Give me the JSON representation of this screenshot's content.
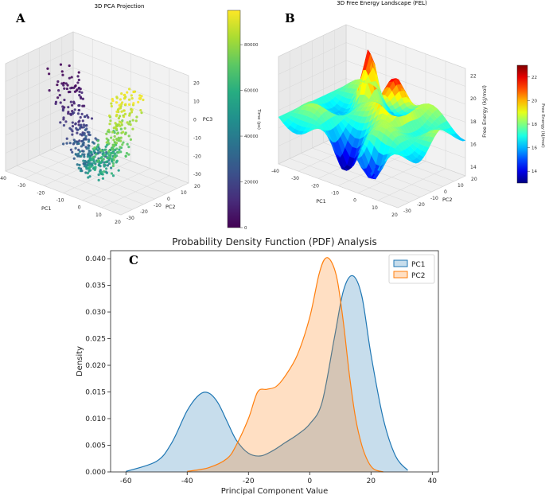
{
  "panels": {
    "a": {
      "letter": "A",
      "title": "3D PCA Projection",
      "xlabel": "PC1",
      "ylabel": "PC2",
      "zlabel": "PC3",
      "x_ticks": [
        "-40",
        "-30",
        "-20",
        "-10",
        "0",
        "10",
        "20"
      ],
      "y_ticks": [
        "20",
        "10",
        "0",
        "-10",
        "-20",
        "-30"
      ],
      "z_ticks": [
        "20",
        "10",
        "0",
        "-10",
        "-20",
        "-30"
      ],
      "colorbar": {
        "label": "Time (ps)",
        "ticks": [
          "80000",
          "60000",
          "40000",
          "20000",
          "0"
        ],
        "min": 0,
        "max": 95000,
        "colormap": "viridis"
      }
    },
    "b": {
      "letter": "B",
      "title": "3D Free Energy Landscape (FEL)",
      "xlabel": "PC1",
      "ylabel": "PC2",
      "zlabel": "Free Energy (kJ/mol)",
      "x_ticks": [
        "-40",
        "-30",
        "-20",
        "-10",
        "0",
        "10",
        "20"
      ],
      "y_ticks": [
        "20",
        "10",
        "0",
        "-10",
        "-20",
        "-30"
      ],
      "z_ticks": [
        "22",
        "20",
        "18",
        "16",
        "14"
      ],
      "colorbar": {
        "label": "Free Energy (kJ/mol)",
        "ticks": [
          "22",
          "20",
          "18",
          "16",
          "14"
        ],
        "min": 13,
        "max": 23,
        "colormap": "jet"
      }
    },
    "c": {
      "letter": "C"
    }
  },
  "chart_data": {
    "type": "area",
    "title": "Probability Density Function (PDF) Analysis",
    "xlabel": "Principal Component Value",
    "ylabel": "Density",
    "xlim": [
      -65,
      42
    ],
    "ylim": [
      0,
      0.0415
    ],
    "x_ticks": [
      -60,
      -40,
      -20,
      0,
      20,
      40
    ],
    "y_ticks": [
      0.0,
      0.005,
      0.01,
      0.015,
      0.02,
      0.025,
      0.03,
      0.035,
      0.04
    ],
    "legend_position": "top-right",
    "series": [
      {
        "name": "PC1",
        "color": "#1f77b4",
        "x": [
          -60,
          -50,
          -45,
          -40,
          -36,
          -33,
          -30,
          -27,
          -24,
          -20,
          -16,
          -12,
          -8,
          -4,
          0,
          4,
          8,
          11,
          14,
          17,
          20,
          24,
          28,
          32
        ],
        "y": [
          0.0001,
          0.002,
          0.0055,
          0.0115,
          0.0145,
          0.0148,
          0.013,
          0.0095,
          0.006,
          0.0035,
          0.003,
          0.004,
          0.0055,
          0.007,
          0.009,
          0.013,
          0.025,
          0.034,
          0.0368,
          0.033,
          0.022,
          0.01,
          0.003,
          0.0003
        ]
      },
      {
        "name": "PC2",
        "color": "#ff7f0e",
        "x": [
          -40,
          -33,
          -27,
          -24,
          -20,
          -17,
          -14,
          -11,
          -8,
          -4,
          0,
          3,
          5,
          7,
          9,
          11,
          13,
          15,
          17,
          19,
          21,
          24
        ],
        "y": [
          0.0001,
          0.0008,
          0.0025,
          0.005,
          0.01,
          0.015,
          0.0155,
          0.016,
          0.018,
          0.022,
          0.029,
          0.037,
          0.04,
          0.0395,
          0.036,
          0.028,
          0.018,
          0.01,
          0.005,
          0.002,
          0.0005,
          0.0
        ]
      }
    ]
  }
}
